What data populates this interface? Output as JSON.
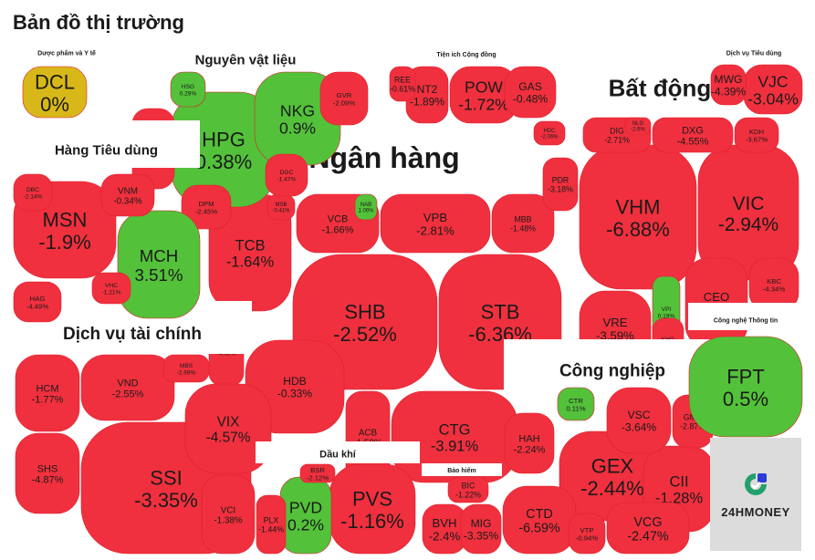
{
  "page": {
    "title": "Bản đồ thị trường"
  },
  "brand": {
    "name": "24HMONEY",
    "accent": "#22a06b"
  },
  "colors": {
    "down": "#f0303e",
    "up": "#53c13a",
    "flat": "#d8b719",
    "ceil": "#d623e0",
    "floor": "#2bc6d4",
    "border": "#ffffff",
    "banner": "#ffffff"
  },
  "chart_data": {
    "type": "treemap",
    "title": "Bản đồ thị trường",
    "sectors": [
      {
        "name": "Ngân hàng",
        "stocks": [
          {
            "ticker": "SHB",
            "change": "-2.52%"
          },
          {
            "ticker": "STB",
            "change": "-6.36%"
          },
          {
            "ticker": "TCB",
            "change": "-1.64%"
          },
          {
            "ticker": "VPB",
            "change": "-2.81%"
          },
          {
            "ticker": "CTG",
            "change": "-3.91%"
          },
          {
            "ticker": "HDB",
            "change": "-0.33%"
          },
          {
            "ticker": "ACB",
            "change": "-1.58%"
          },
          {
            "ticker": "VCB",
            "change": "-1.66%"
          },
          {
            "ticker": "MBB",
            "change": "-1.48%"
          },
          {
            "ticker": "LPB",
            "change": "-4.08%"
          },
          {
            "ticker": "MSB",
            "change": "-0.41%"
          },
          {
            "ticker": "NAB",
            "change": "1.06%"
          }
        ]
      },
      {
        "name": "Bất động sản",
        "stocks": [
          {
            "ticker": "VHM",
            "change": "-6.88%"
          },
          {
            "ticker": "VIC",
            "change": "-2.94%"
          },
          {
            "ticker": "VRE",
            "change": "-3.59%"
          },
          {
            "ticker": "CEO",
            "change": "-1.63%"
          },
          {
            "ticker": "DXG",
            "change": "-4.55%"
          },
          {
            "ticker": "DIG",
            "change": "-2.71%"
          },
          {
            "ticker": "PDR",
            "change": "-3.18%"
          },
          {
            "ticker": "KDH",
            "change": "-3.67%"
          },
          {
            "ticker": "KBC",
            "change": "-4.34%"
          },
          {
            "ticker": "VPI",
            "change": "0.19%"
          },
          {
            "ticker": "KHG",
            "change": "-3.37%"
          },
          {
            "ticker": "HDC",
            "change": "-2.06%"
          },
          {
            "ticker": "NLG",
            "change": "-2.6%"
          }
        ]
      },
      {
        "name": "Dịch vụ tài chính",
        "stocks": [
          {
            "ticker": "SSI",
            "change": "-3.35%"
          },
          {
            "ticker": "VIX",
            "change": "-4.57%"
          },
          {
            "ticker": "HCM",
            "change": "-1.77%"
          },
          {
            "ticker": "VND",
            "change": "-2.55%"
          },
          {
            "ticker": "SHS",
            "change": "-4.87%"
          },
          {
            "ticker": "VCI",
            "change": "-1.38%"
          },
          {
            "ticker": "MBS",
            "change": "-2.69%"
          }
        ]
      },
      {
        "name": "Nguyên vật liệu",
        "stocks": [
          {
            "ticker": "HPG",
            "change": "0.38%"
          },
          {
            "ticker": "NKG",
            "change": "0.9%"
          },
          {
            "ticker": "HSG",
            "change": "0.29%"
          },
          {
            "ticker": "GVR",
            "change": "-2.09%"
          },
          {
            "ticker": "DCM",
            "change": "-2.12%"
          },
          {
            "ticker": "DGC",
            "change": "-1.47%"
          },
          {
            "ticker": "DPM",
            "change": "-2.45%"
          }
        ]
      },
      {
        "name": "Hàng Tiêu dùng",
        "stocks": [
          {
            "ticker": "MSN",
            "change": "-1.9%"
          },
          {
            "ticker": "MCH",
            "change": "3.51%"
          },
          {
            "ticker": "VNM",
            "change": "-0.34%"
          },
          {
            "ticker": "DBC",
            "change": "-2.14%"
          },
          {
            "ticker": "HAG",
            "change": "-4.49%"
          },
          {
            "ticker": "VHC",
            "change": "-1.21%"
          }
        ]
      },
      {
        "name": "Công nghiệp",
        "stocks": [
          {
            "ticker": "GEX",
            "change": "-2.44%"
          },
          {
            "ticker": "CII",
            "change": "-1.28%"
          },
          {
            "ticker": "VCG",
            "change": "-2.47%"
          },
          {
            "ticker": "CTD",
            "change": "-6.59%"
          },
          {
            "ticker": "HAH",
            "change": "-2.24%"
          },
          {
            "ticker": "VSC",
            "change": "-3.64%"
          },
          {
            "ticker": "GMD",
            "change": "-2.87%"
          },
          {
            "ticker": "CTR",
            "change": "0.11%"
          },
          {
            "ticker": "VTP",
            "change": "-0.94%"
          }
        ]
      },
      {
        "name": "Công nghệ Thông tin",
        "stocks": [
          {
            "ticker": "FPT",
            "change": "0.5%"
          }
        ]
      },
      {
        "name": "Dầu khí",
        "stocks": [
          {
            "ticker": "PVS",
            "change": "-1.16%"
          },
          {
            "ticker": "PVD",
            "change": "0.2%"
          },
          {
            "ticker": "BSR",
            "change": "-2.12%"
          },
          {
            "ticker": "PLX",
            "change": "-1.44%"
          }
        ]
      },
      {
        "name": "Bảo hiểm",
        "stocks": [
          {
            "ticker": "BVH",
            "change": "-2.4%"
          },
          {
            "ticker": "MIG",
            "change": "-3.35%"
          },
          {
            "ticker": "BIC",
            "change": "-1.22%"
          }
        ]
      },
      {
        "name": "Dược phẩm và Y tế",
        "stocks": [
          {
            "ticker": "DCL",
            "change": "0%"
          }
        ]
      },
      {
        "name": "Tiện ích Cộng đồng",
        "stocks": [
          {
            "ticker": "POW",
            "change": "-1.72%"
          },
          {
            "ticker": "NT2",
            "change": "-1.89%"
          },
          {
            "ticker": "GAS",
            "change": "-0.48%"
          },
          {
            "ticker": "REE",
            "change": "-0.61%"
          }
        ]
      },
      {
        "name": "Dịch vụ Tiêu dùng",
        "stocks": [
          {
            "ticker": "VJC",
            "change": "-3.04%"
          },
          {
            "ticker": "MWG",
            "change": "-4.39%"
          }
        ]
      }
    ]
  }
}
